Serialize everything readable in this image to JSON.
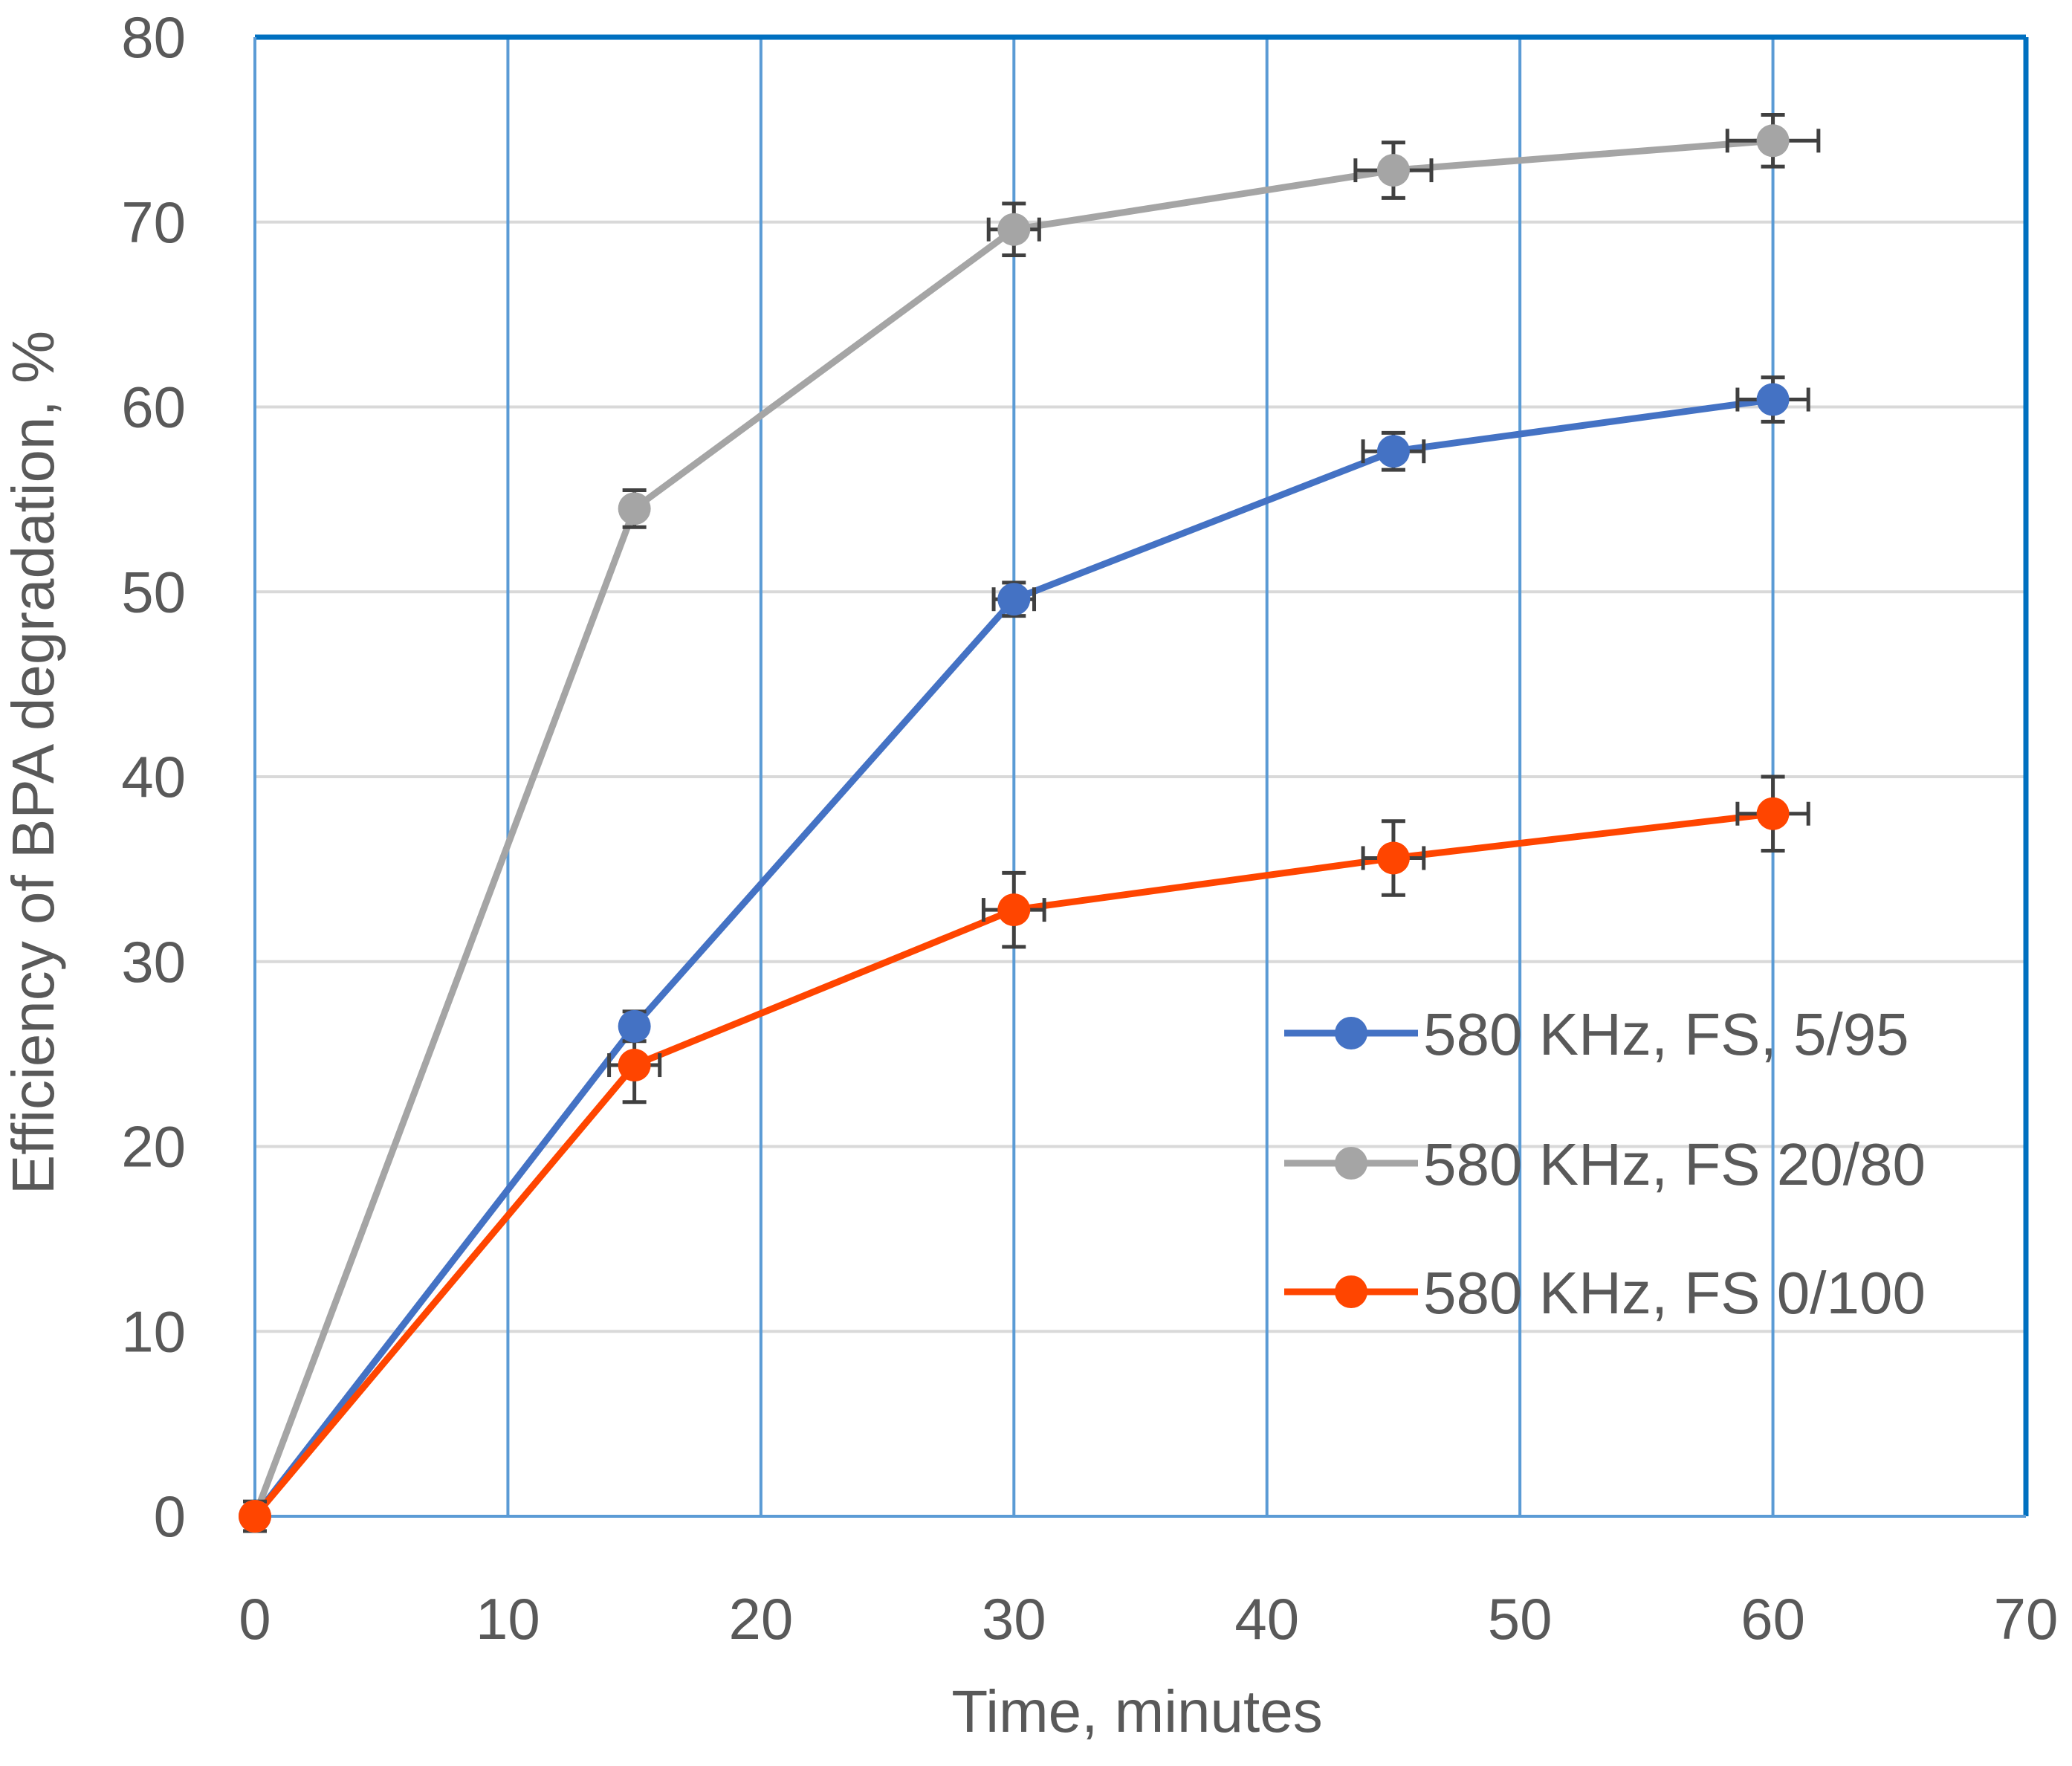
{
  "chart_data": {
    "type": "line",
    "title": "",
    "xlabel": "Time, minutes",
    "ylabel": "Efficiency of BPA degradation, %",
    "xlim": [
      0,
      70
    ],
    "ylim": [
      0,
      80
    ],
    "xticks": [
      0,
      10,
      20,
      30,
      40,
      50,
      60,
      70
    ],
    "yticks": [
      0,
      10,
      20,
      30,
      40,
      50,
      60,
      70,
      80
    ],
    "x": [
      0,
      15,
      30,
      45,
      60
    ],
    "grid": "on",
    "legend_position": "bottom-right",
    "colors": {
      "plot_border": "#0070C0",
      "vertical_grid": "#5B9BD5",
      "horizontal_grid": "#D9D9D9",
      "error_bar": "#404040"
    },
    "series": [
      {
        "name": "580 KHz, FS, 5/95",
        "color": "#4472C4",
        "y": [
          0,
          26.5,
          49.6,
          57.6,
          60.4
        ],
        "y_error": [
          0,
          0.8,
          0.9,
          1.0,
          1.2
        ],
        "x_error": [
          0,
          0,
          0.8,
          1.2,
          1.4
        ]
      },
      {
        "name": "580 KHz, FS 20/80",
        "color": "#A5A5A5",
        "y": [
          0,
          54.5,
          69.6,
          72.8,
          74.4
        ],
        "y_error": [
          0.8,
          1.0,
          1.4,
          1.5,
          1.4
        ],
        "x_error": [
          0,
          0,
          1.0,
          1.5,
          1.8
        ]
      },
      {
        "name": "580 KHz, FS 0/100",
        "color": "#FF4500",
        "y": [
          0,
          24.4,
          32.8,
          35.6,
          38.0
        ],
        "y_error": [
          0,
          2.0,
          2.0,
          2.0,
          2.0
        ],
        "x_error": [
          0,
          1.0,
          1.2,
          1.2,
          1.4
        ]
      }
    ]
  }
}
